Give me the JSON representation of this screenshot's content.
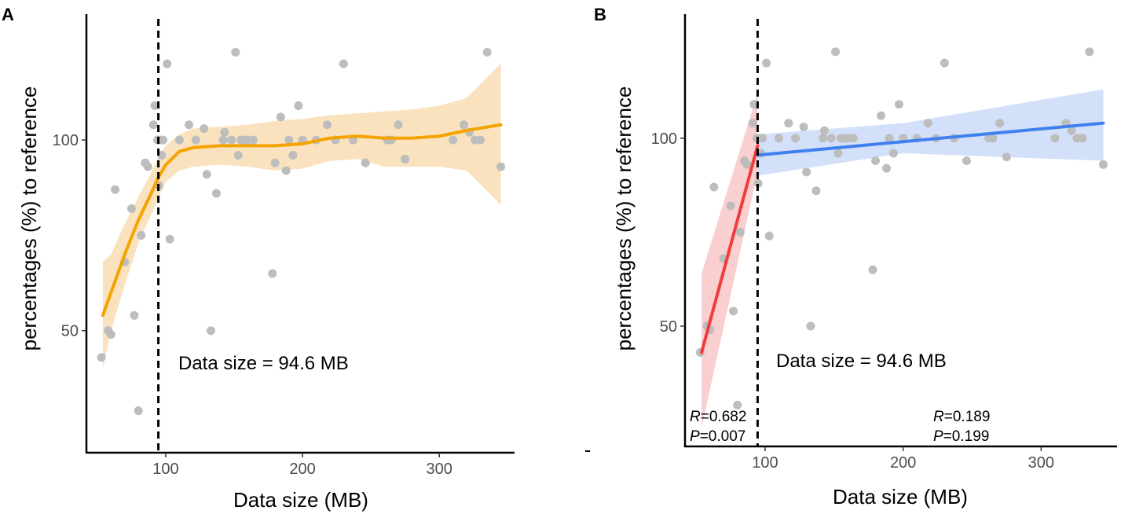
{
  "chart_data": [
    {
      "panel": "A",
      "type": "scatter",
      "xlabel": "Data size (MB)",
      "ylabel": "percentages (%) to reference",
      "xticks": [
        100,
        200,
        300
      ],
      "yticks": [
        50,
        100
      ],
      "xlim": [
        42,
        355
      ],
      "ylim": [
        18,
        133
      ],
      "threshold_x": 94.6,
      "annotation": "Data size = 94.6 MB",
      "colors": {
        "point": "#bdbdbd",
        "line": "#f5a300",
        "band": "#f9e2bd"
      },
      "fit": {
        "method": "loess",
        "line": [
          [
            54,
            54
          ],
          [
            60,
            60
          ],
          [
            70,
            70
          ],
          [
            80,
            79
          ],
          [
            90,
            86.5
          ],
          [
            95,
            90.5
          ],
          [
            100,
            93.5
          ],
          [
            110,
            97
          ],
          [
            120,
            98
          ],
          [
            140,
            98.5
          ],
          [
            160,
            98.5
          ],
          [
            180,
            98.5
          ],
          [
            200,
            99
          ],
          [
            220,
            100.5
          ],
          [
            240,
            101
          ],
          [
            260,
            100.5
          ],
          [
            280,
            100.5
          ],
          [
            300,
            101
          ],
          [
            320,
            102.5
          ],
          [
            345,
            104
          ]
        ],
        "lower": [
          [
            54,
            40
          ],
          [
            60,
            50
          ],
          [
            70,
            62
          ],
          [
            80,
            73
          ],
          [
            90,
            81
          ],
          [
            95,
            85
          ],
          [
            100,
            89
          ],
          [
            110,
            92
          ],
          [
            120,
            93
          ],
          [
            140,
            93.5
          ],
          [
            160,
            93
          ],
          [
            180,
            92
          ],
          [
            200,
            92.5
          ],
          [
            220,
            94.5
          ],
          [
            240,
            95
          ],
          [
            260,
            93
          ],
          [
            280,
            93
          ],
          [
            300,
            93
          ],
          [
            320,
            92
          ],
          [
            345,
            83
          ]
        ],
        "upper": [
          [
            54,
            68
          ],
          [
            60,
            70
          ],
          [
            70,
            78
          ],
          [
            80,
            85
          ],
          [
            90,
            92
          ],
          [
            95,
            96
          ],
          [
            100,
            98.5
          ],
          [
            110,
            101.5
          ],
          [
            120,
            103
          ],
          [
            140,
            103.5
          ],
          [
            160,
            104
          ],
          [
            180,
            105
          ],
          [
            200,
            105.5
          ],
          [
            220,
            106.5
          ],
          [
            240,
            107
          ],
          [
            260,
            107.5
          ],
          [
            280,
            108
          ],
          [
            300,
            109
          ],
          [
            320,
            111
          ],
          [
            345,
            120
          ]
        ]
      },
      "points": [
        [
          53,
          43
        ],
        [
          58,
          50
        ],
        [
          60,
          49
        ],
        [
          63,
          87
        ],
        [
          70,
          68
        ],
        [
          75,
          82
        ],
        [
          77,
          54
        ],
        [
          80,
          29
        ],
        [
          82,
          75
        ],
        [
          85,
          94
        ],
        [
          87,
          93
        ],
        [
          91,
          104
        ],
        [
          92,
          109
        ],
        [
          94,
          100
        ],
        [
          95,
          88
        ],
        [
          96,
          100
        ],
        [
          97,
          96
        ],
        [
          98,
          100
        ],
        [
          101,
          120
        ],
        [
          103,
          74
        ],
        [
          110,
          100
        ],
        [
          117,
          104
        ],
        [
          122,
          100
        ],
        [
          128,
          103
        ],
        [
          130,
          91
        ],
        [
          133,
          50
        ],
        [
          137,
          86
        ],
        [
          142,
          100
        ],
        [
          143,
          102
        ],
        [
          148,
          100
        ],
        [
          151,
          123
        ],
        [
          153,
          96
        ],
        [
          155,
          100
        ],
        [
          158,
          100
        ],
        [
          160,
          100
        ],
        [
          164,
          100
        ],
        [
          178,
          65
        ],
        [
          180,
          94
        ],
        [
          184,
          106
        ],
        [
          188,
          92
        ],
        [
          190,
          100
        ],
        [
          193,
          96
        ],
        [
          197,
          109
        ],
        [
          200,
          100
        ],
        [
          210,
          100
        ],
        [
          218,
          104
        ],
        [
          224,
          100
        ],
        [
          230,
          120
        ],
        [
          237,
          100
        ],
        [
          246,
          94
        ],
        [
          262,
          100
        ],
        [
          265,
          100
        ],
        [
          270,
          104
        ],
        [
          275,
          95
        ],
        [
          310,
          100
        ],
        [
          318,
          104
        ],
        [
          322,
          102
        ],
        [
          326,
          100
        ],
        [
          330,
          100
        ],
        [
          335,
          123
        ],
        [
          345,
          93
        ]
      ]
    },
    {
      "panel": "B",
      "type": "scatter",
      "xlabel": "Data size (MB)",
      "ylabel": "percentages (%) to reference",
      "xticks": [
        100,
        200,
        300
      ],
      "yticks": [
        50,
        100
      ],
      "xlim": [
        42,
        355
      ],
      "ylim": [
        18,
        133
      ],
      "threshold_x": 94.6,
      "annotation": "Data size = 94.6 MB",
      "colors": {
        "point": "#bdbdbd",
        "left_line": "#f03c3c",
        "left_band": "#f9cfd0",
        "right_line": "#4080ee",
        "right_band": "#d3e0fa"
      },
      "left_fit": {
        "method": "lm",
        "line": [
          [
            54,
            43
          ],
          [
            94.6,
            98
          ]
        ],
        "lower": [
          [
            54,
            23
          ],
          [
            94.6,
            91
          ]
        ],
        "upper": [
          [
            54,
            64
          ],
          [
            94.6,
            112
          ]
        ],
        "stats": {
          "R": "0.682",
          "P": "0.007"
        }
      },
      "right_fit": {
        "method": "lm",
        "line": [
          [
            94.6,
            95.5
          ],
          [
            345,
            104
          ]
        ],
        "lower": [
          [
            94.6,
            90
          ],
          [
            200,
            96
          ],
          [
            345,
            94
          ]
        ],
        "upper": [
          [
            94.6,
            101
          ],
          [
            200,
            104
          ],
          [
            345,
            113
          ]
        ],
        "stats": {
          "R": "0.189",
          "P": "0.199"
        }
      },
      "points": [
        [
          53,
          43
        ],
        [
          58,
          50
        ],
        [
          60,
          49
        ],
        [
          63,
          87
        ],
        [
          70,
          68
        ],
        [
          75,
          82
        ],
        [
          77,
          54
        ],
        [
          80,
          29
        ],
        [
          82,
          75
        ],
        [
          85,
          94
        ],
        [
          87,
          93
        ],
        [
          91,
          104
        ],
        [
          92,
          109
        ],
        [
          94,
          100
        ],
        [
          95,
          88
        ],
        [
          96,
          100
        ],
        [
          97,
          96
        ],
        [
          98,
          100
        ],
        [
          101,
          120
        ],
        [
          103,
          74
        ],
        [
          110,
          100
        ],
        [
          117,
          104
        ],
        [
          122,
          100
        ],
        [
          128,
          103
        ],
        [
          130,
          91
        ],
        [
          133,
          50
        ],
        [
          137,
          86
        ],
        [
          142,
          100
        ],
        [
          143,
          102
        ],
        [
          148,
          100
        ],
        [
          151,
          123
        ],
        [
          153,
          96
        ],
        [
          155,
          100
        ],
        [
          158,
          100
        ],
        [
          160,
          100
        ],
        [
          164,
          100
        ],
        [
          178,
          65
        ],
        [
          180,
          94
        ],
        [
          184,
          106
        ],
        [
          188,
          92
        ],
        [
          190,
          100
        ],
        [
          193,
          96
        ],
        [
          197,
          109
        ],
        [
          200,
          100
        ],
        [
          210,
          100
        ],
        [
          218,
          104
        ],
        [
          224,
          100
        ],
        [
          230,
          120
        ],
        [
          237,
          100
        ],
        [
          246,
          94
        ],
        [
          262,
          100
        ],
        [
          265,
          100
        ],
        [
          270,
          104
        ],
        [
          275,
          95
        ],
        [
          310,
          100
        ],
        [
          318,
          104
        ],
        [
          322,
          102
        ],
        [
          326,
          100
        ],
        [
          330,
          100
        ],
        [
          335,
          123
        ],
        [
          345,
          93
        ]
      ]
    }
  ]
}
